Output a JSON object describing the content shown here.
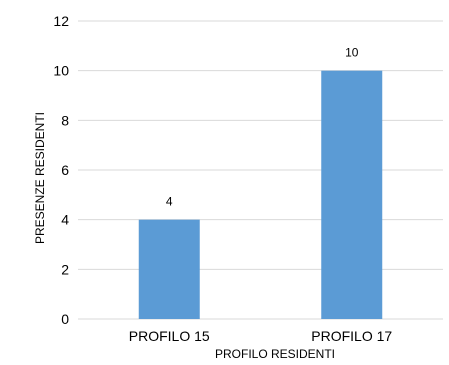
{
  "chart_data": {
    "type": "bar",
    "categories": [
      "PROFILO 15",
      "PROFILO 17"
    ],
    "values": [
      4,
      10
    ],
    "data_labels": [
      "4",
      "10"
    ],
    "title": "",
    "xlabel": "PROFILO RESIDENTI",
    "ylabel": "PRESENZE RESIDENTI",
    "ylim": [
      0,
      12
    ],
    "yticks": [
      0,
      2,
      4,
      6,
      8,
      10,
      12
    ],
    "grid": true,
    "legend": "none",
    "bar_color": "#5b9bd5",
    "grid_color": "#d9d9d9"
  }
}
